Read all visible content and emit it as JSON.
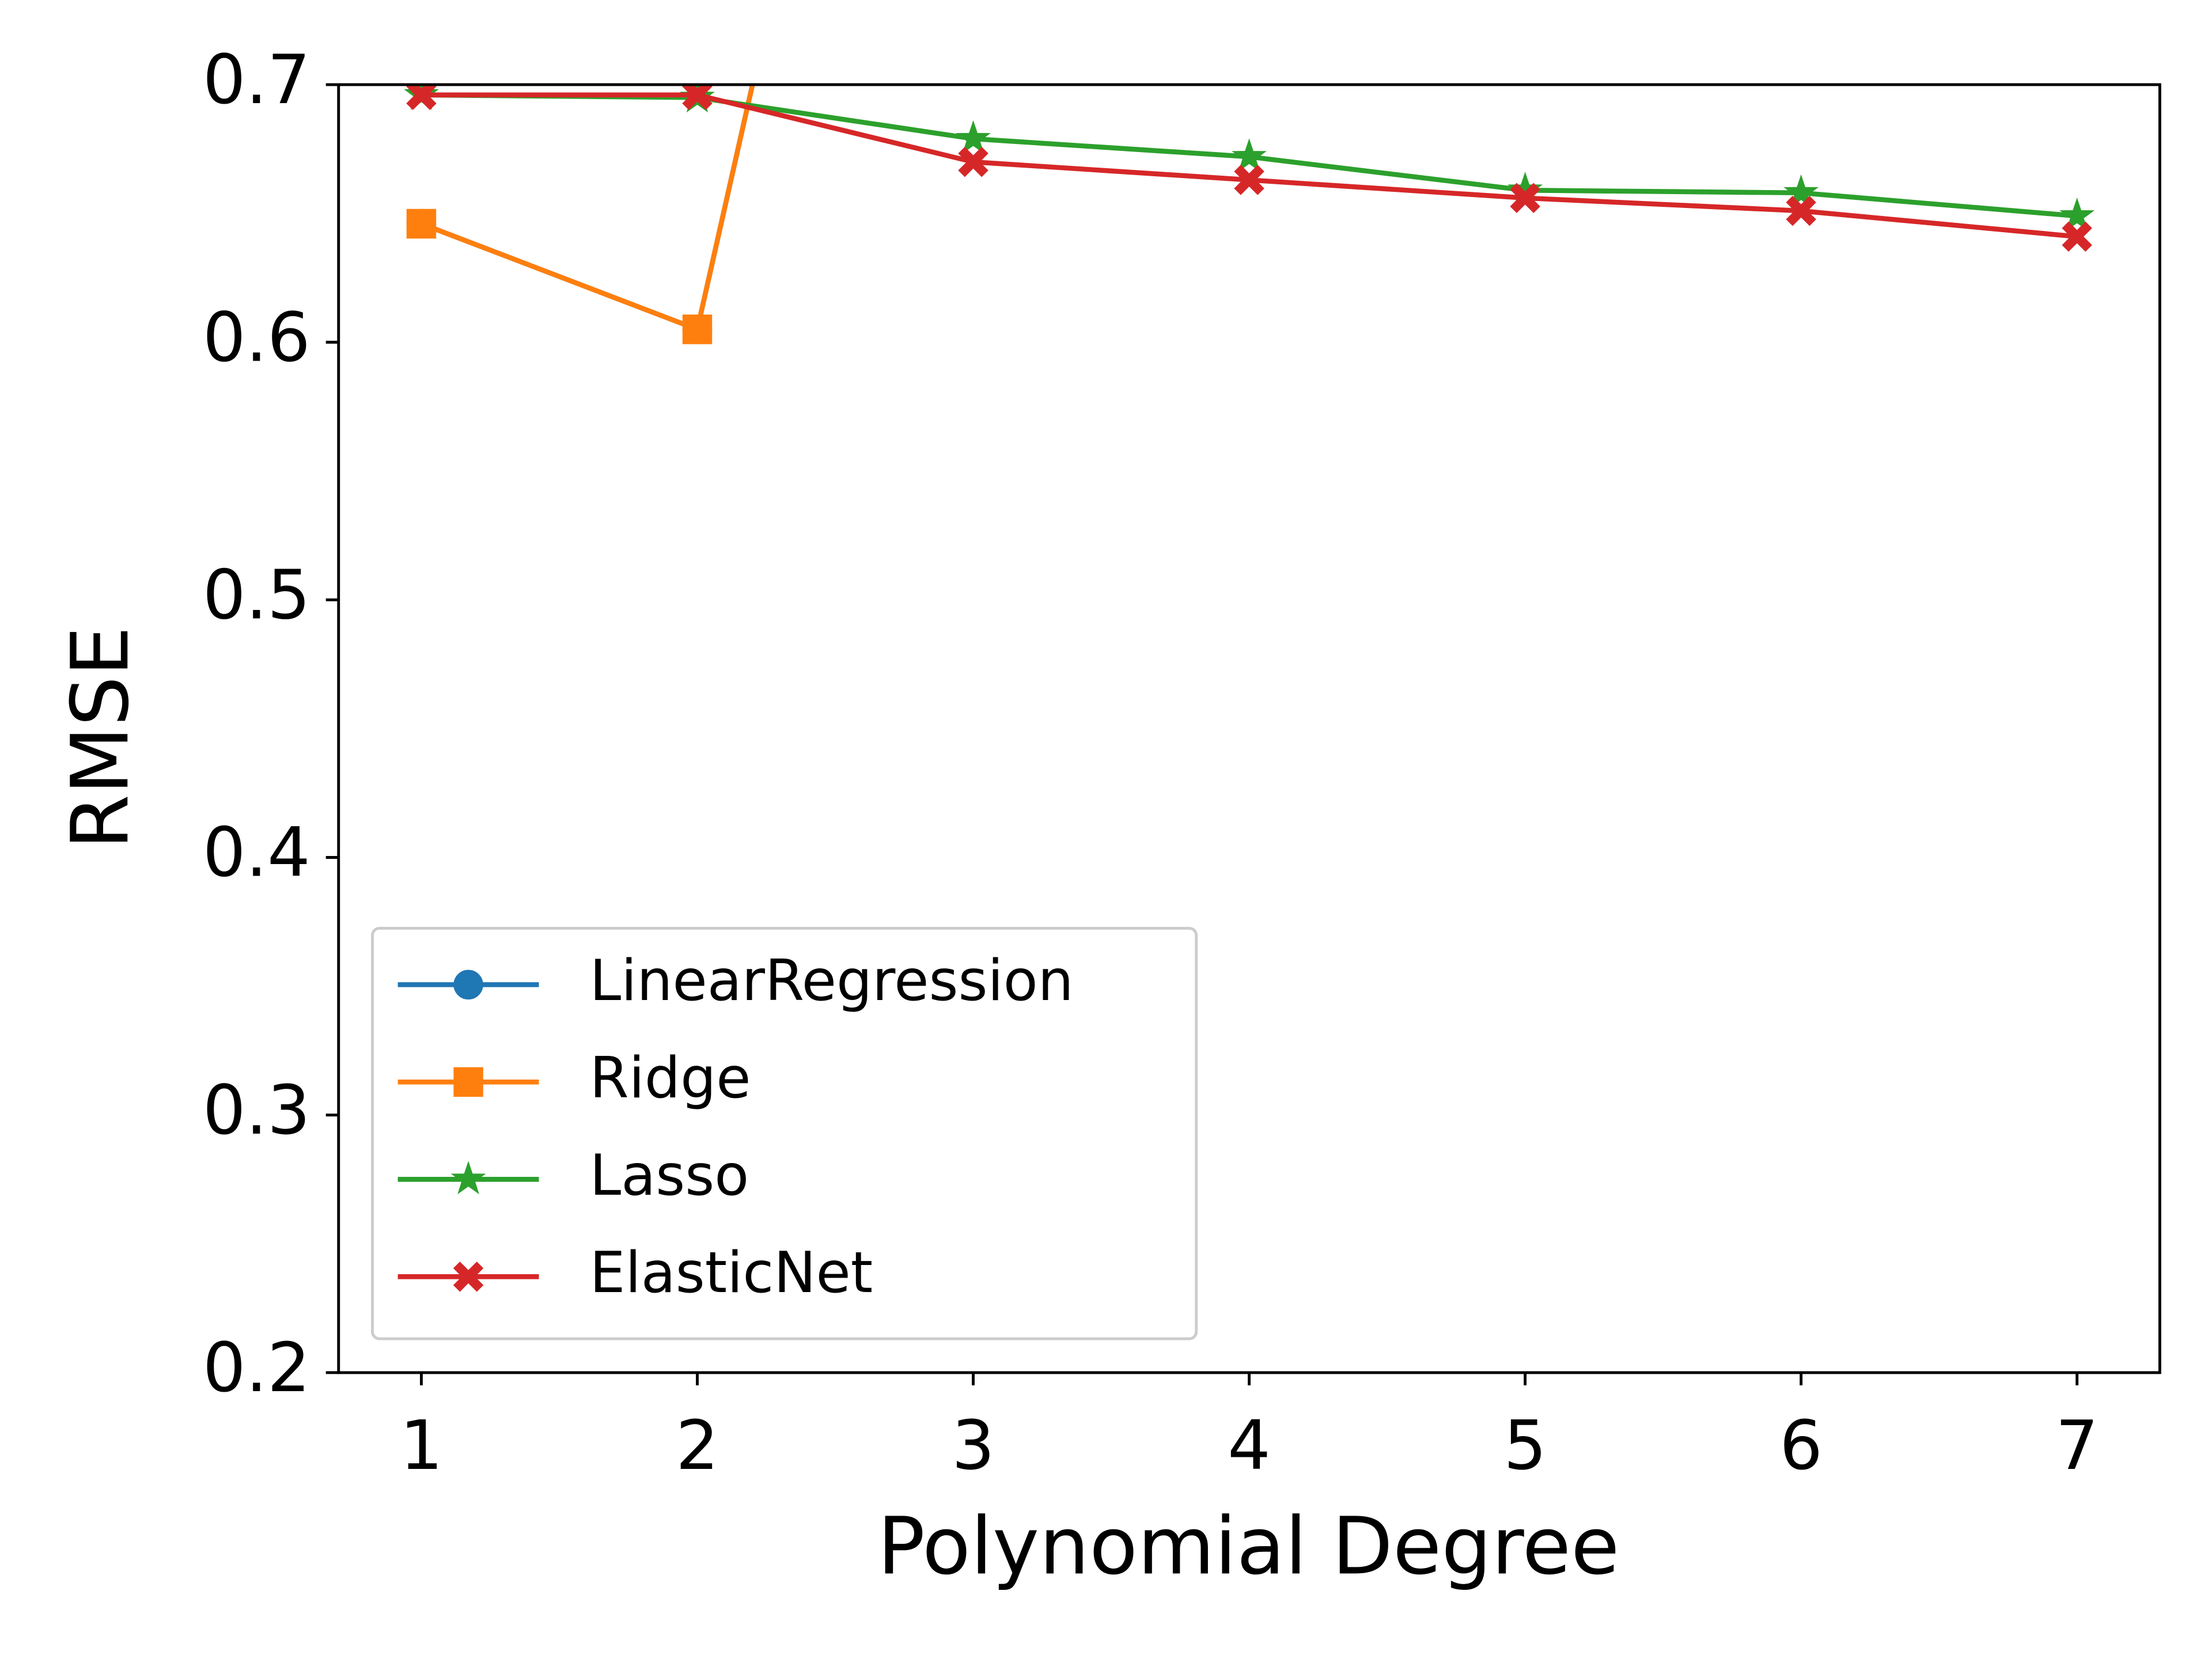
{
  "chart_data": {
    "type": "line",
    "x": [
      1,
      2,
      3,
      4,
      5,
      6,
      7
    ],
    "x_label": "Polynomial Degree",
    "y_label": "RMSE",
    "xlim": [
      0.7,
      7.3
    ],
    "ylim": [
      0.2,
      0.7
    ],
    "xticks": [
      1,
      2,
      3,
      4,
      5,
      6,
      7
    ],
    "yticks": [
      0.2,
      0.3,
      0.4,
      0.5,
      0.6,
      0.7
    ],
    "legend": "lower left",
    "series": [
      {
        "name": "LinearRegression",
        "color": "#1f77b4",
        "marker": "circle",
        "values": [
          0.646,
          0.605,
          1.08,
          null,
          null,
          null,
          null
        ]
      },
      {
        "name": "Ridge",
        "color": "#ff7f0e",
        "marker": "square",
        "values": [
          0.646,
          0.605,
          1.08,
          null,
          null,
          null,
          null
        ]
      },
      {
        "name": "Lasso",
        "color": "#2ca02c",
        "marker": "star",
        "values": [
          0.696,
          0.695,
          0.679,
          0.672,
          0.659,
          0.658,
          0.649
        ]
      },
      {
        "name": "ElasticNet",
        "color": "#d62728",
        "marker": "x",
        "values": [
          0.696,
          0.696,
          0.67,
          0.663,
          0.656,
          0.651,
          0.641
        ]
      }
    ]
  }
}
